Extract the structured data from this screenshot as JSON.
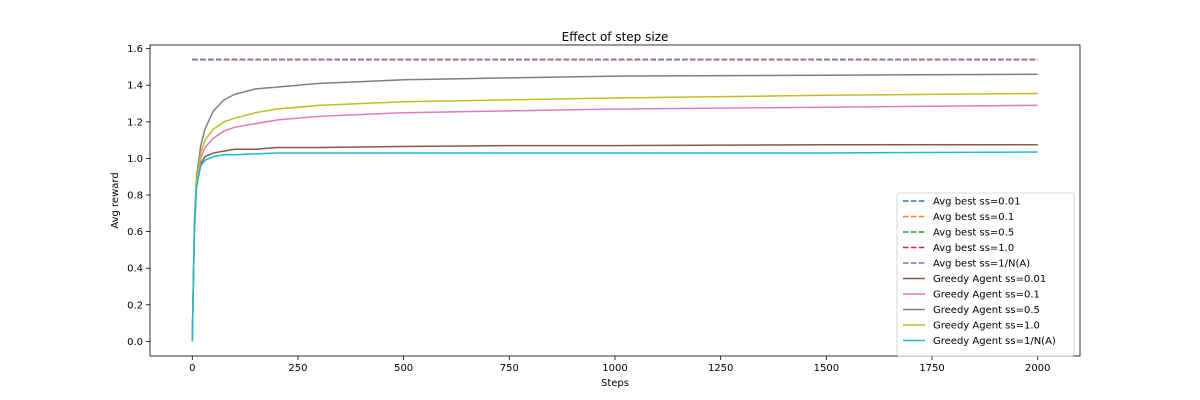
{
  "chart_data": {
    "type": "line",
    "title": "Effect of step size",
    "xlabel": "Steps",
    "ylabel": "Avg reward",
    "xlim": [
      -100,
      2100
    ],
    "ylim": [
      -0.08,
      1.62
    ],
    "xticks": [
      0,
      250,
      500,
      750,
      1000,
      1250,
      1500,
      1750,
      2000
    ],
    "yticks": [
      0.0,
      0.2,
      0.4,
      0.6,
      0.8,
      1.0,
      1.2,
      1.4,
      1.6
    ],
    "xtick_labels": [
      "0",
      "250",
      "500",
      "750",
      "1000",
      "1250",
      "1500",
      "1750",
      "2000"
    ],
    "ytick_labels": [
      "0.0",
      "0.2",
      "0.4",
      "0.6",
      "0.8",
      "1.0",
      "1.2",
      "1.4",
      "1.6"
    ],
    "grid": false,
    "legend_position": "lower-right",
    "series": [
      {
        "name": "Avg best ss=0.01",
        "style": "dashed",
        "color": "#1f77b4",
        "x": [
          0,
          2000
        ],
        "y": [
          1.54,
          1.54
        ]
      },
      {
        "name": "Avg best ss=0.1",
        "style": "dashed",
        "color": "#ff7f0e",
        "x": [
          0,
          2000
        ],
        "y": [
          1.54,
          1.54
        ]
      },
      {
        "name": "Avg best ss=0.5",
        "style": "dashed",
        "color": "#2ca02c",
        "x": [
          0,
          2000
        ],
        "y": [
          1.54,
          1.54
        ]
      },
      {
        "name": "Avg best ss=1.0",
        "style": "dashed",
        "color": "#d62728",
        "x": [
          0,
          2000
        ],
        "y": [
          1.54,
          1.54
        ]
      },
      {
        "name": "Avg best ss=1/N(A)",
        "style": "dashed",
        "color": "#9467bd",
        "x": [
          0,
          2000
        ],
        "y": [
          1.54,
          1.54
        ]
      },
      {
        "name": "Greedy Agent ss=0.01",
        "style": "solid",
        "color": "#8c564b",
        "x": [
          0,
          5,
          10,
          20,
          30,
          50,
          75,
          100,
          150,
          200,
          300,
          500,
          750,
          1000,
          1500,
          2000
        ],
        "y": [
          0.0,
          0.6,
          0.85,
          0.97,
          1.01,
          1.03,
          1.04,
          1.05,
          1.05,
          1.06,
          1.06,
          1.065,
          1.07,
          1.07,
          1.075,
          1.075
        ]
      },
      {
        "name": "Greedy Agent ss=0.1",
        "style": "solid",
        "color": "#e377c2",
        "x": [
          0,
          5,
          10,
          20,
          30,
          50,
          75,
          100,
          150,
          200,
          250,
          300,
          400,
          500,
          750,
          1000,
          1500,
          2000
        ],
        "y": [
          0.0,
          0.62,
          0.86,
          1.0,
          1.06,
          1.11,
          1.15,
          1.17,
          1.19,
          1.21,
          1.22,
          1.23,
          1.24,
          1.25,
          1.26,
          1.27,
          1.28,
          1.29
        ]
      },
      {
        "name": "Greedy Agent ss=0.5",
        "style": "solid",
        "color": "#7f7f7f",
        "x": [
          0,
          5,
          10,
          20,
          30,
          50,
          75,
          100,
          150,
          200,
          250,
          300,
          400,
          500,
          750,
          1000,
          1500,
          2000
        ],
        "y": [
          0.0,
          0.65,
          0.9,
          1.07,
          1.16,
          1.26,
          1.32,
          1.35,
          1.38,
          1.39,
          1.4,
          1.41,
          1.42,
          1.43,
          1.44,
          1.45,
          1.455,
          1.46
        ]
      },
      {
        "name": "Greedy Agent ss=1.0",
        "style": "solid",
        "color": "#bcbd22",
        "x": [
          0,
          5,
          10,
          20,
          30,
          50,
          75,
          100,
          150,
          200,
          250,
          300,
          400,
          500,
          750,
          1000,
          1500,
          2000
        ],
        "y": [
          0.0,
          0.63,
          0.88,
          1.03,
          1.1,
          1.16,
          1.2,
          1.22,
          1.25,
          1.27,
          1.28,
          1.29,
          1.3,
          1.31,
          1.32,
          1.33,
          1.345,
          1.355
        ]
      },
      {
        "name": "Greedy Agent ss=1/N(A)",
        "style": "solid",
        "color": "#17becf",
        "x": [
          0,
          5,
          10,
          20,
          30,
          50,
          75,
          100,
          150,
          200,
          500,
          1000,
          1500,
          2000
        ],
        "y": [
          0.0,
          0.6,
          0.84,
          0.96,
          0.99,
          1.01,
          1.02,
          1.02,
          1.025,
          1.03,
          1.03,
          1.03,
          1.03,
          1.035
        ]
      }
    ]
  }
}
